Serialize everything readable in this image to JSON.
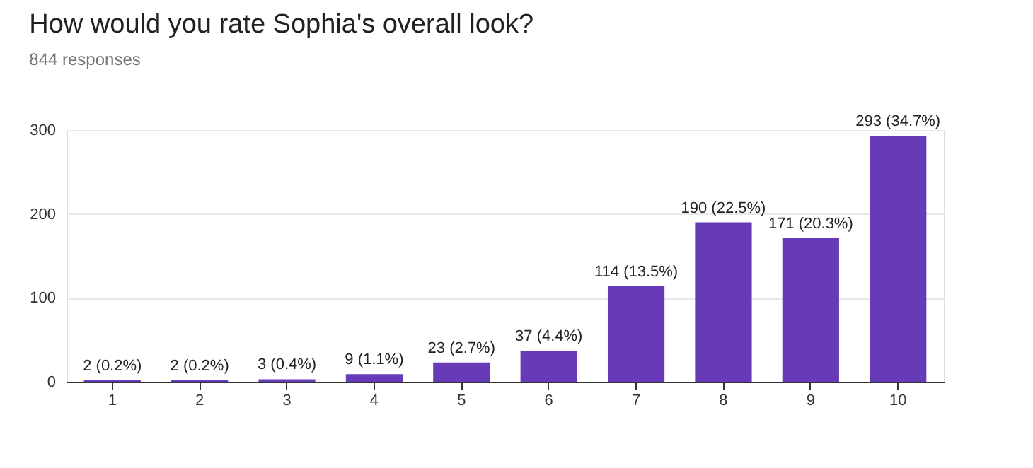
{
  "chart_data": {
    "type": "bar",
    "title": "How would you rate Sophia's overall look?",
    "subtitle": "844 responses",
    "categories": [
      "1",
      "2",
      "3",
      "4",
      "5",
      "6",
      "7",
      "8",
      "9",
      "10"
    ],
    "values": [
      2,
      2,
      3,
      9,
      23,
      37,
      114,
      190,
      171,
      293
    ],
    "value_labels": [
      "2 (0.2%)",
      "2 (0.2%)",
      "3 (0.4%)",
      "9 (1.1%)",
      "23 (2.7%)",
      "37 (4.4%)",
      "114 (13.5%)",
      "190 (22.5%)",
      "171 (20.3%)",
      "293 (34.7%)"
    ],
    "color": "#673ab7",
    "ylim": [
      0,
      300
    ],
    "yticks": [
      0,
      100,
      200,
      300
    ],
    "grid": "y"
  }
}
